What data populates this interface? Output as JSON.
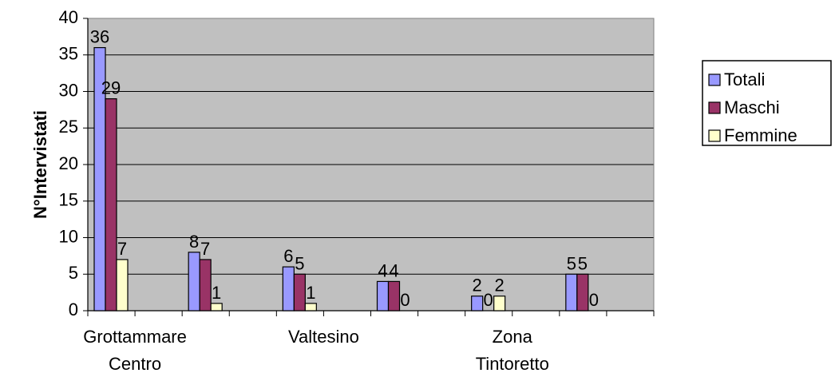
{
  "chart_data": {
    "type": "bar",
    "ylabel": "N°Intervistati",
    "ylim": [
      0,
      40
    ],
    "yticks": [
      0,
      5,
      10,
      15,
      20,
      25,
      30,
      35,
      40
    ],
    "categories": [
      "Grottammare Centro",
      "",
      "Valtesino",
      "",
      "Zona Tintoretto",
      ""
    ],
    "category_label_lines": [
      [
        "Grottammare",
        "Centro"
      ],
      [],
      [
        "Valtesino"
      ],
      [],
      [
        "Zona",
        "Tintoretto"
      ],
      []
    ],
    "series": [
      {
        "name": "Totali",
        "color": "#9999ff",
        "values": [
          36,
          8,
          6,
          4,
          2,
          5
        ]
      },
      {
        "name": "Maschi",
        "color": "#993366",
        "values": [
          29,
          7,
          5,
          4,
          0,
          5
        ]
      },
      {
        "name": "Femmine",
        "color": "#ffffcc",
        "values": [
          7,
          1,
          1,
          0,
          2,
          0
        ]
      }
    ],
    "plot_background": "#c0c0c0",
    "grid": true,
    "legend_position": "right"
  }
}
